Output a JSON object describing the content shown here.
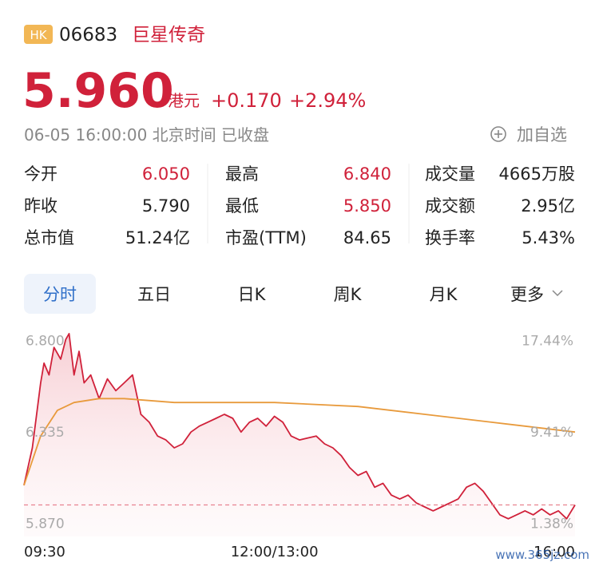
{
  "header": {
    "market": "HK",
    "code": "06683",
    "name": "巨星传奇",
    "price": "5.960",
    "currency": "港元",
    "change": "+0.170",
    "change_pct": "+2.94%",
    "status": "06-05 16:00:00 北京时间 已收盘",
    "watchlist": "加自选"
  },
  "stats": [
    [
      {
        "label": "今开",
        "value": "6.050",
        "color": "#d0213a"
      },
      {
        "label": "最高",
        "value": "6.840",
        "color": "#d0213a"
      },
      {
        "label": "成交量",
        "value": "4665万股",
        "color": "#222222"
      }
    ],
    [
      {
        "label": "昨收",
        "value": "5.790",
        "color": "#222222"
      },
      {
        "label": "最低",
        "value": "5.850",
        "color": "#d0213a"
      },
      {
        "label": "成交额",
        "value": "2.95亿",
        "color": "#222222"
      }
    ],
    [
      {
        "label": "总市值",
        "value": "51.24亿",
        "color": "#222222"
      },
      {
        "label": "市盈(TTM)",
        "value": "84.65",
        "color": "#222222"
      },
      {
        "label": "换手率",
        "value": "5.43%",
        "color": "#222222"
      }
    ]
  ],
  "tabs": {
    "items": [
      "分时",
      "五日",
      "日K",
      "周K",
      "月K",
      "更多"
    ],
    "selected": 0
  },
  "chart_data": {
    "type": "line",
    "xlim": [
      0,
      330
    ],
    "xticks": [
      {
        "value": 0,
        "label": "09:30"
      },
      {
        "value": 150,
        "label": "12:00/13:00"
      },
      {
        "value": 330,
        "label": "16:00"
      }
    ],
    "ylim": [
      5.8,
      6.87
    ],
    "yticks": [
      {
        "value": 6.8,
        "label": "6.800"
      },
      {
        "value": 6.335,
        "label": "6.335"
      },
      {
        "value": 5.87,
        "label": "5.870"
      }
    ],
    "y2lim": [
      0.17,
      18.65
    ],
    "y2ticks": [
      {
        "value": 17.44,
        "label": "17.44%"
      },
      {
        "value": 9.41,
        "label": "9.41%"
      },
      {
        "value": 1.38,
        "label": "1.38%"
      }
    ],
    "series": [
      {
        "color": "#d0213a",
        "x": [
          0,
          5,
          10,
          12,
          15,
          18,
          22,
          25,
          27,
          30,
          33,
          36,
          40,
          45,
          50,
          55,
          60,
          65,
          70,
          75,
          80,
          85,
          90,
          95,
          100,
          105,
          110,
          115,
          120,
          125,
          130,
          135,
          140,
          145,
          150,
          155,
          160,
          165,
          170,
          175,
          180,
          185,
          190,
          195,
          200,
          205,
          210,
          215,
          220,
          225,
          230,
          235,
          240,
          245,
          250,
          255,
          260,
          265,
          270,
          275,
          280,
          285,
          290,
          295,
          300,
          305,
          310,
          315,
          320,
          325,
          330
        ],
        "values": [
          6.06,
          6.25,
          6.58,
          6.68,
          6.62,
          6.76,
          6.7,
          6.8,
          6.83,
          6.62,
          6.74,
          6.58,
          6.62,
          6.5,
          6.6,
          6.54,
          6.58,
          6.62,
          6.42,
          6.38,
          6.31,
          6.29,
          6.25,
          6.27,
          6.33,
          6.36,
          6.38,
          6.4,
          6.42,
          6.4,
          6.33,
          6.38,
          6.4,
          6.36,
          6.41,
          6.38,
          6.31,
          6.29,
          6.3,
          6.31,
          6.27,
          6.25,
          6.21,
          6.15,
          6.11,
          6.13,
          6.05,
          6.07,
          6.01,
          5.99,
          6.01,
          5.97,
          5.95,
          5.93,
          5.95,
          5.97,
          5.99,
          6.05,
          6.07,
          6.03,
          5.97,
          5.91,
          5.89,
          5.91,
          5.93,
          5.91,
          5.94,
          5.91,
          5.93,
          5.89,
          5.96
        ]
      },
      {
        "color": "#e89a3c",
        "x": [
          0,
          10,
          20,
          30,
          45,
          60,
          90,
          150,
          200,
          240,
          280,
          330
        ],
        "values": [
          6.06,
          6.31,
          6.44,
          6.48,
          6.5,
          6.5,
          6.48,
          6.48,
          6.46,
          6.42,
          6.38,
          6.33
        ]
      }
    ]
  },
  "watermark": "www.365jz.com"
}
